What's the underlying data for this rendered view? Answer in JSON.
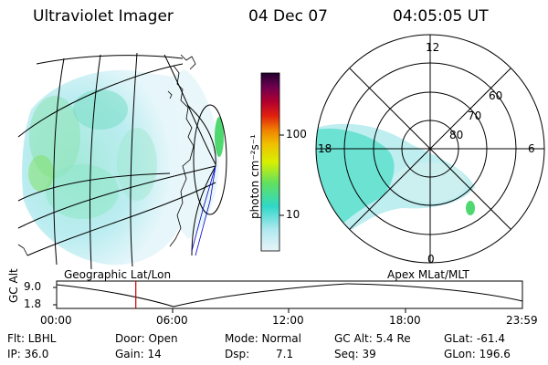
{
  "header": {
    "instrument": "Ultraviolet Imager",
    "date": "04 Dec 07",
    "time": "04:05:05 UT"
  },
  "colorbar": {
    "unit_label": "photon cm⁻²s⁻¹",
    "ticks": [
      "100",
      "10"
    ]
  },
  "left_panel": {
    "caption": "Geographic Lat/Lon"
  },
  "right_panel": {
    "caption": "Apex MLat/MLT",
    "mlt_labels": {
      "top": "12",
      "left": "18",
      "right": "6",
      "bottom": "0"
    },
    "lat_labels": [
      "60",
      "70",
      "80"
    ]
  },
  "altitude_plot": {
    "ylabel": "GC Alt",
    "yticks": [
      "9.0",
      "1.8"
    ],
    "xticks": [
      "00:00",
      "06:00",
      "12:00",
      "18:00",
      "23:59"
    ],
    "current_time_hours": 4.08
  },
  "info": {
    "flt": "Flt: LBHL",
    "ip": "IP: 36.0",
    "door": "Door: Open",
    "gain": "Gain: 14",
    "mode": "Mode: Normal",
    "dsp_label": "Dsp:",
    "dsp_value": "7.1",
    "gc_alt": "GC Alt: 5.4 Re",
    "seq": "Seq: 39",
    "glat": "GLat: -61.4",
    "glon": "GLon: 196.6"
  },
  "colors": {
    "low": "#bfe8f0",
    "mid": "#40e0d0",
    "high": "#7fe060",
    "marker": "#cc0000"
  }
}
